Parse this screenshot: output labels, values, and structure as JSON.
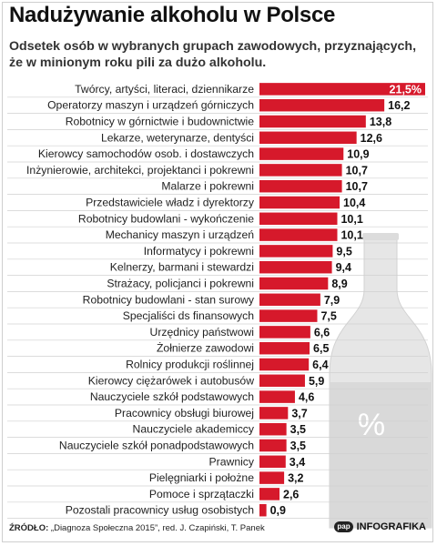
{
  "title": "Nadużywanie alkoholu w Polsce",
  "subtitle": "Odsetek osób w wybranych grupach zawodowych, przyznających, że w minionym roku pili za dużo alkoholu.",
  "source_label": "ŹRÓDŁO:",
  "source_text": " „Diagnoza Społeczna 2015”, red. J. Czapiński, T. Panek",
  "brand_logo": "pap",
  "brand_text": "INFOGRAFIKA",
  "bottle_symbol": "%",
  "colors": {
    "bar": "#d6192b",
    "bottle": "#e6e6e6",
    "bottle_liquid": "#d9d9d9",
    "row_line": "#d0d0d0"
  },
  "chart_data": {
    "type": "bar",
    "orientation": "horizontal",
    "title": "Nadużywanie alkoholu w Polsce",
    "categories": [
      "Twórcy, artyści, literaci, dziennikarze",
      "Operatorzy maszyn i urządzeń górniczych",
      "Robotnicy w górnictwie i budownictwie",
      "Lekarze, weterynarze, dentyści",
      "Kierowcy samochodów osob. i dostawczych",
      "Inżynierowie, architekci, projektanci i pokrewni",
      "Malarze i pokrewni",
      "Przedstawiciele władz i dyrektorzy",
      "Robotnicy budowlani - wykończenie",
      "Mechanicy maszyn i urządzeń",
      "Informatycy i pokrewni",
      "Kelnerzy, barmani i stewardzi",
      "Strażacy, policjanci i pokrewni",
      "Robotnicy budowlani - stan surowy",
      "Specjaliści ds finansowych",
      "Urzędnicy państwowi",
      "Żołnierze zawodowi",
      "Rolnicy produkcji roślinnej",
      "Kierowcy ciężarówek i autobusów",
      "Nauczyciele szkół podstawowych",
      "Pracownicy obsługi biurowej",
      "Nauczyciele akademiccy",
      "Nauczyciele szkół ponadpodstawowych",
      "Prawnicy",
      "Pielęgniarki i położne",
      "Pomoce i sprzątaczki",
      "Pozostali pracownicy usług osobistych"
    ],
    "values": [
      21.5,
      16.2,
      13.8,
      12.6,
      10.9,
      10.7,
      10.7,
      10.4,
      10.1,
      10.1,
      9.5,
      9.4,
      8.9,
      7.9,
      7.5,
      6.6,
      6.5,
      6.4,
      5.9,
      4.6,
      3.7,
      3.5,
      3.5,
      3.4,
      3.2,
      2.6,
      0.9
    ],
    "value_labels": [
      "21,5%",
      "16,2",
      "13,8",
      "12,6",
      "10,9",
      "10,7",
      "10,7",
      "10,4",
      "10,1",
      "10,1",
      "9,5",
      "9,4",
      "8,9",
      "7,9",
      "7,5",
      "6,6",
      "6,5",
      "6,4",
      "5,9",
      "4,6",
      "3,7",
      "3,5",
      "3,5",
      "3,4",
      "3,2",
      "2,6",
      "0,9"
    ],
    "xlim": [
      0,
      21.5
    ],
    "grid": false,
    "legend": "none"
  }
}
